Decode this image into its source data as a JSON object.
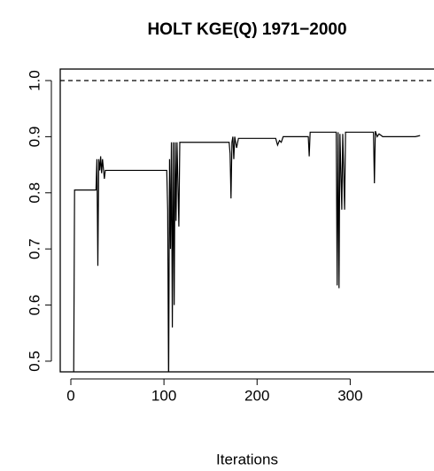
{
  "chart_data": {
    "type": "line",
    "title": "HOLT KGE(Q) 1971−2000",
    "x_label": "Iterations",
    "xlim": [
      -11.4,
      390
    ],
    "ylim": [
      0.481,
      1.0205
    ],
    "xticks": [
      0,
      100,
      200,
      300
    ],
    "yticks": [
      0.5,
      0.6,
      0.7,
      0.8,
      0.9,
      {
        "value": 1,
        "label": "1.0"
      }
    ],
    "hlines": [
      1
    ],
    "series": [
      {
        "color": "#000000",
        "x": [
          3,
          4,
          27,
          28,
          29,
          30,
          31,
          32,
          33,
          34,
          36,
          37,
          38,
          103,
          104,
          105,
          106,
          107,
          108,
          109,
          110,
          111,
          112,
          113,
          114,
          116,
          117,
          118,
          170,
          171,
          172,
          173,
          174,
          175,
          176,
          178,
          180,
          220,
          222,
          224,
          226,
          228,
          255,
          256,
          257,
          285,
          286,
          287,
          288,
          289,
          291,
          292,
          294,
          295,
          325,
          326,
          327,
          329,
          331,
          335,
          370,
          375
        ],
        "values": [
          0.45,
          0.805,
          0.805,
          0.86,
          0.67,
          0.86,
          0.84,
          0.865,
          0.835,
          0.86,
          0.825,
          0.84,
          0.84,
          0.84,
          0.77,
          0.45,
          0.86,
          0.7,
          0.89,
          0.56,
          0.89,
          0.6,
          0.89,
          0.75,
          0.89,
          0.74,
          0.89,
          0.89,
          0.89,
          0.87,
          0.79,
          0.89,
          0.9,
          0.86,
          0.9,
          0.88,
          0.897,
          0.897,
          0.885,
          0.893,
          0.89,
          0.9,
          0.9,
          0.865,
          0.908,
          0.908,
          0.635,
          0.908,
          0.63,
          0.905,
          0.77,
          0.905,
          0.77,
          0.908,
          0.908,
          0.817,
          0.91,
          0.9,
          0.905,
          0.9,
          0.9,
          0.902
        ]
      }
    ]
  }
}
